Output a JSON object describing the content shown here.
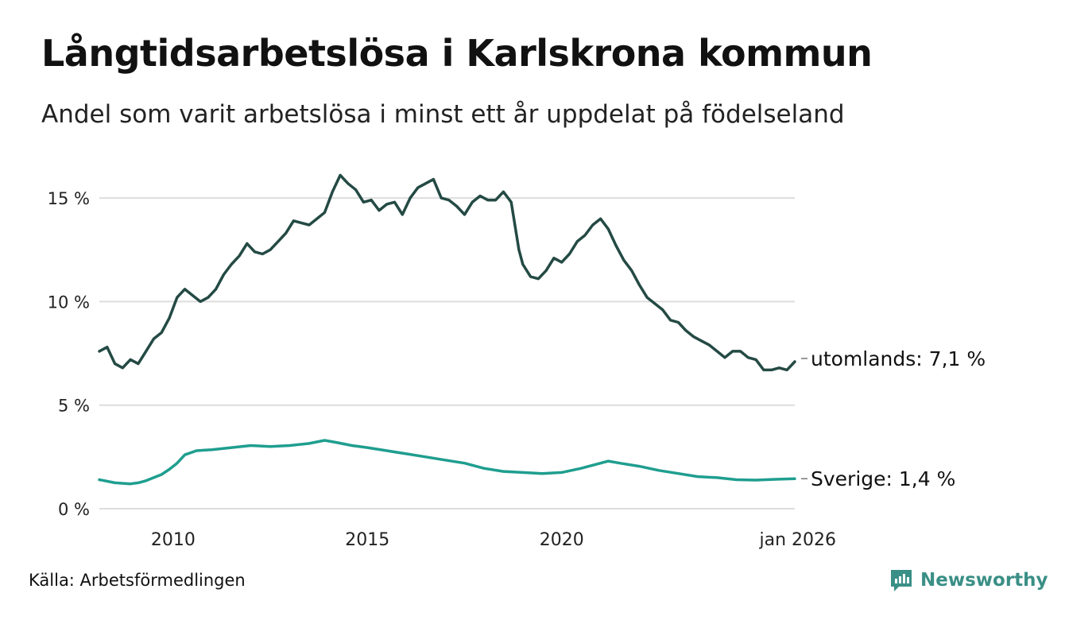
{
  "header": {
    "title": "Långtidsarbetslösa i Karlskrona kommun",
    "subtitle": "Andel som varit arbetslösa i minst ett år uppdelat på födelseland"
  },
  "footer": {
    "source": "Källa: Arbetsförmedlingen",
    "brand": "Newsworthy"
  },
  "colors": {
    "utomlands": "#244a44",
    "sverige": "#1f9e8f",
    "grid": "#dddddd"
  },
  "chart_data": {
    "type": "line",
    "title": "Långtidsarbetslösa i Karlskrona kommun",
    "xlabel": "",
    "ylabel": "",
    "xlim": [
      2008.1,
      2026.0
    ],
    "ylim": [
      0,
      16.5
    ],
    "yticks": [
      0,
      5,
      10,
      15
    ],
    "ytick_labels": [
      "0 %",
      "5 %",
      "10 %",
      "15 %"
    ],
    "xticks": [
      2010,
      2015,
      2020,
      2026
    ],
    "xtick_labels": [
      "2010",
      "2015",
      "2020",
      "jan 2026"
    ],
    "grid": true,
    "series": [
      {
        "name": "utomlands",
        "end_label": "utomlands: 7,1 %",
        "x": [
          2008.1,
          2008.3,
          2008.5,
          2008.7,
          2008.9,
          2009.1,
          2009.3,
          2009.5,
          2009.7,
          2009.9,
          2010.1,
          2010.3,
          2010.5,
          2010.7,
          2010.9,
          2011.1,
          2011.3,
          2011.5,
          2011.7,
          2011.9,
          2012.1,
          2012.3,
          2012.5,
          2012.7,
          2012.9,
          2013.1,
          2013.3,
          2013.5,
          2013.7,
          2013.9,
          2014.1,
          2014.3,
          2014.5,
          2014.7,
          2014.9,
          2015.1,
          2015.3,
          2015.5,
          2015.7,
          2015.9,
          2016.1,
          2016.3,
          2016.5,
          2016.7,
          2016.9,
          2017.1,
          2017.3,
          2017.5,
          2017.7,
          2017.9,
          2018.1,
          2018.3,
          2018.5,
          2018.7,
          2018.9,
          2019.0,
          2019.2,
          2019.4,
          2019.6,
          2019.8,
          2020.0,
          2020.2,
          2020.4,
          2020.6,
          2020.8,
          2021.0,
          2021.2,
          2021.4,
          2021.6,
          2021.8,
          2022.0,
          2022.2,
          2022.4,
          2022.6,
          2022.8,
          2023.0,
          2023.2,
          2023.4,
          2023.6,
          2023.8,
          2024.0,
          2024.2,
          2024.4,
          2024.6,
          2024.8,
          2025.0,
          2025.2,
          2025.4,
          2025.6,
          2025.8,
          2026.0
        ],
        "values": [
          7.6,
          7.8,
          7.0,
          6.8,
          7.2,
          7.0,
          7.6,
          8.2,
          8.5,
          9.2,
          10.2,
          10.6,
          10.3,
          10.0,
          10.2,
          10.6,
          11.3,
          11.8,
          12.2,
          12.8,
          12.4,
          12.3,
          12.5,
          12.9,
          13.3,
          13.9,
          13.8,
          13.7,
          14.0,
          14.3,
          15.3,
          16.1,
          15.7,
          15.4,
          14.8,
          14.9,
          14.4,
          14.7,
          14.8,
          14.2,
          15.0,
          15.5,
          15.7,
          15.9,
          15.0,
          14.9,
          14.6,
          14.2,
          14.8,
          15.1,
          14.9,
          14.9,
          15.3,
          14.8,
          12.5,
          11.8,
          11.2,
          11.1,
          11.5,
          12.1,
          11.9,
          12.3,
          12.9,
          13.2,
          13.7,
          14.0,
          13.5,
          12.7,
          12.0,
          11.5,
          10.8,
          10.2,
          9.9,
          9.6,
          9.1,
          9.0,
          8.6,
          8.3,
          8.1,
          7.9,
          7.6,
          7.3,
          7.6,
          7.6,
          7.3,
          7.2,
          6.7,
          6.7,
          6.8,
          6.7,
          7.1
        ]
      },
      {
        "name": "Sverige",
        "end_label": "Sverige: 1,4 %",
        "x": [
          2008.1,
          2008.5,
          2008.9,
          2009.1,
          2009.3,
          2009.5,
          2009.7,
          2009.9,
          2010.1,
          2010.3,
          2010.6,
          2011.0,
          2011.5,
          2012.0,
          2012.5,
          2013.0,
          2013.5,
          2013.9,
          2014.2,
          2014.6,
          2015.0,
          2015.5,
          2016.0,
          2016.5,
          2017.0,
          2017.5,
          2018.0,
          2018.5,
          2019.0,
          2019.5,
          2020.0,
          2020.5,
          2021.0,
          2021.2,
          2021.5,
          2022.0,
          2022.5,
          2023.0,
          2023.5,
          2024.0,
          2024.5,
          2025.0,
          2025.5,
          2026.0
        ],
        "values": [
          1.4,
          1.25,
          1.2,
          1.25,
          1.35,
          1.5,
          1.65,
          1.9,
          2.2,
          2.6,
          2.8,
          2.85,
          2.95,
          3.05,
          3.0,
          3.05,
          3.15,
          3.3,
          3.2,
          3.05,
          2.95,
          2.8,
          2.65,
          2.5,
          2.35,
          2.2,
          1.95,
          1.8,
          1.75,
          1.7,
          1.75,
          1.95,
          2.2,
          2.3,
          2.2,
          2.05,
          1.85,
          1.7,
          1.55,
          1.5,
          1.4,
          1.38,
          1.42,
          1.45
        ]
      }
    ]
  }
}
